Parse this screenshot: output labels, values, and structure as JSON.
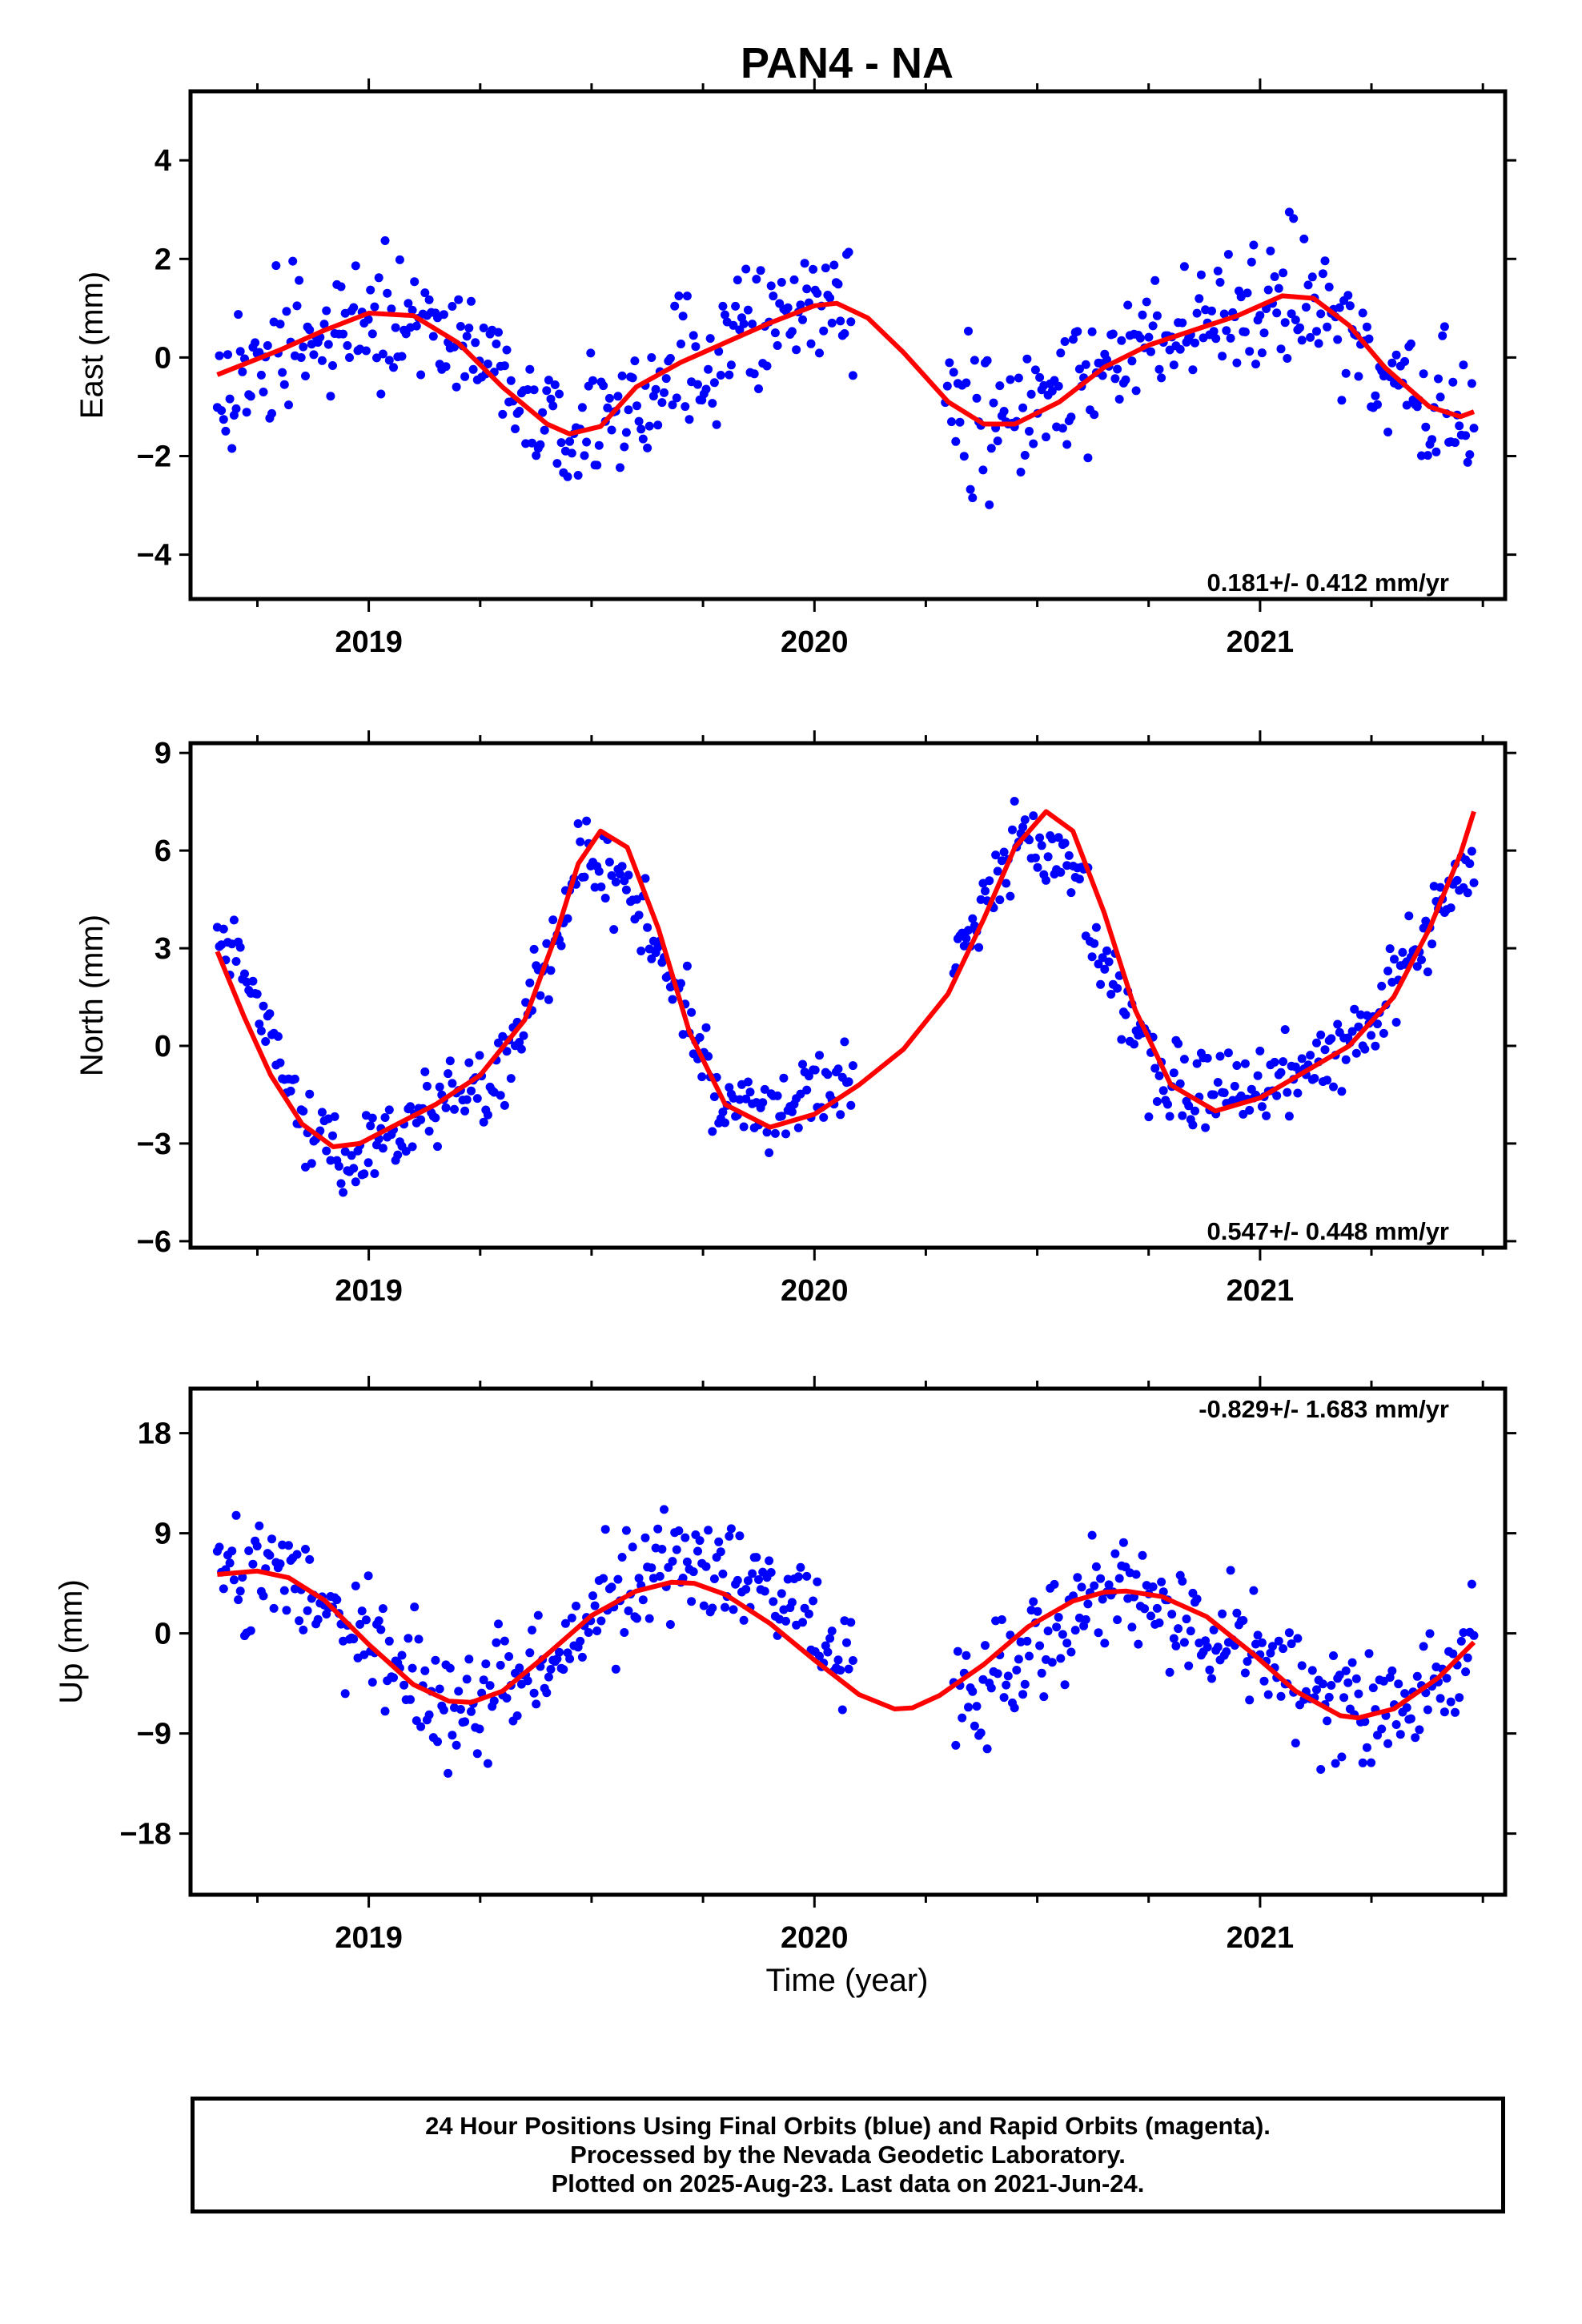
{
  "colors": {
    "final_orbits": "#0000ff",
    "rapid_orbits": "#ff00ff",
    "model": "#ff0000",
    "frame": "#000000"
  },
  "chart_data": [
    {
      "type": "scatter",
      "title": "PAN4 - NA",
      "xlabel": "",
      "ylabel": "East (mm)",
      "xlim": [
        2018.6,
        2021.55
      ],
      "ylim": [
        -4.9,
        5.4
      ],
      "xticks": [
        2019,
        2020,
        2021
      ],
      "yticks": [
        -4,
        -2,
        0,
        2,
        4
      ],
      "ytick_labels": [
        "−4",
        "−2",
        "0",
        "2",
        "4"
      ],
      "rate_label": "0.181+/- 0.412 mm/yr",
      "rate_position": "bottom-right",
      "grid": false,
      "series": [
        {
          "kind": "points",
          "x_range": [
            2018.66,
            2021.48
          ],
          "count": 600,
          "center": [
            [
              2018.66,
              -0.5
            ],
            [
              2018.75,
              -0.3
            ],
            [
              2018.85,
              0.3
            ],
            [
              2019.0,
              0.8
            ],
            [
              2019.15,
              0.8
            ],
            [
              2019.25,
              0.2
            ],
            [
              2019.35,
              -1.2
            ],
            [
              2019.45,
              -1.6
            ],
            [
              2019.6,
              -0.8
            ],
            [
              2019.75,
              0.0
            ],
            [
              2019.9,
              0.8
            ],
            [
              2020.05,
              1.0
            ],
            [
              2020.15,
              0.3
            ],
            [
              2020.35,
              -1.2
            ],
            [
              2020.45,
              -1.3
            ],
            [
              2020.55,
              -0.6
            ],
            [
              2020.7,
              0.3
            ],
            [
              2020.85,
              0.6
            ],
            [
              2021.0,
              1.2
            ],
            [
              2021.12,
              1.2
            ],
            [
              2021.25,
              -0.5
            ],
            [
              2021.35,
              -0.9
            ],
            [
              2021.48,
              -1.2
            ]
          ],
          "gaps": [
            [
              2020.09,
              2020.29
            ]
          ]
        },
        {
          "kind": "line",
          "name": "model",
          "x": [
            2018.66,
            2018.8,
            2018.9,
            2019.0,
            2019.1,
            2019.2,
            2019.3,
            2019.4,
            2019.45,
            2019.52,
            2019.6,
            2019.7,
            2019.8,
            2019.9,
            2020.0,
            2020.05,
            2020.12,
            2020.2,
            2020.3,
            2020.38,
            2020.45,
            2020.55,
            2020.65,
            2020.75,
            2020.85,
            2020.95,
            2021.05,
            2021.12,
            2021.2,
            2021.28,
            2021.38,
            2021.45,
            2021.48
          ],
          "y": [
            -0.35,
            0.15,
            0.55,
            0.9,
            0.85,
            0.3,
            -0.6,
            -1.35,
            -1.55,
            -1.4,
            -0.6,
            -0.1,
            0.3,
            0.7,
            1.05,
            1.1,
            0.8,
            0.1,
            -0.9,
            -1.35,
            -1.35,
            -0.9,
            -0.2,
            0.25,
            0.55,
            0.85,
            1.25,
            1.2,
            0.65,
            -0.2,
            -1.0,
            -1.2,
            -1.1
          ]
        }
      ]
    },
    {
      "type": "scatter",
      "title": "",
      "xlabel": "",
      "ylabel": "North (mm)",
      "xlim": [
        2018.6,
        2021.55
      ],
      "ylim": [
        -6.2,
        9.3
      ],
      "xticks": [
        2019,
        2020,
        2021
      ],
      "yticks": [
        -6,
        -3,
        0,
        3,
        6,
        9
      ],
      "ytick_labels": [
        "−6",
        "−3",
        "0",
        "3",
        "6",
        "9"
      ],
      "rate_label": "0.547+/- 0.448 mm/yr",
      "rate_position": "bottom-right",
      "grid": false,
      "series": [
        {
          "kind": "points",
          "x_range": [
            2018.66,
            2021.48
          ],
          "count": 600,
          "center": [
            [
              2018.66,
              3.5
            ],
            [
              2018.75,
              1.5
            ],
            [
              2018.85,
              -2.0
            ],
            [
              2018.95,
              -3.5
            ],
            [
              2019.1,
              -2.5
            ],
            [
              2019.2,
              -1.5
            ],
            [
              2019.3,
              -0.5
            ],
            [
              2019.4,
              2.5
            ],
            [
              2019.48,
              6.0
            ],
            [
              2019.58,
              5.0
            ],
            [
              2019.68,
              2.0
            ],
            [
              2019.78,
              -1.5
            ],
            [
              2019.9,
              -2.2
            ],
            [
              2020.05,
              -1.0
            ],
            [
              2020.35,
              3.0
            ],
            [
              2020.45,
              6.5
            ],
            [
              2020.55,
              6.0
            ],
            [
              2020.65,
              3.0
            ],
            [
              2020.75,
              -0.8
            ],
            [
              2020.85,
              -1.5
            ],
            [
              2020.95,
              -1.5
            ],
            [
              2021.08,
              -1.0
            ],
            [
              2021.2,
              0.0
            ],
            [
              2021.3,
              2.0
            ],
            [
              2021.4,
              4.0
            ],
            [
              2021.48,
              6.0
            ]
          ],
          "gaps": [
            [
              2020.09,
              2020.31
            ]
          ]
        },
        {
          "kind": "line",
          "name": "model",
          "x": [
            2018.66,
            2018.72,
            2018.78,
            2018.85,
            2018.92,
            2018.98,
            2019.05,
            2019.15,
            2019.25,
            2019.35,
            2019.42,
            2019.47,
            2019.52,
            2019.58,
            2019.65,
            2019.72,
            2019.8,
            2019.9,
            2020.0,
            2020.1,
            2020.2,
            2020.3,
            2020.38,
            2020.45,
            2020.52,
            2020.58,
            2020.65,
            2020.72,
            2020.8,
            2020.9,
            2021.0,
            2021.1,
            2021.2,
            2021.3,
            2021.38,
            2021.45,
            2021.48
          ],
          "y": [
            2.9,
            0.9,
            -0.9,
            -2.4,
            -3.1,
            -3.0,
            -2.5,
            -1.8,
            -0.9,
            0.8,
            3.4,
            5.6,
            6.6,
            6.1,
            3.6,
            0.4,
            -1.8,
            -2.5,
            -2.1,
            -1.2,
            -0.1,
            1.6,
            3.9,
            6.1,
            7.2,
            6.6,
            4.1,
            1.1,
            -1.2,
            -2.0,
            -1.6,
            -0.8,
            0.0,
            1.5,
            3.6,
            5.9,
            7.2
          ]
        }
      ]
    },
    {
      "type": "scatter",
      "title": "",
      "xlabel": "Time (year)",
      "ylabel": "Up (mm)",
      "xlim": [
        2018.6,
        2021.55
      ],
      "ylim": [
        -23.5,
        22.0
      ],
      "xticks": [
        2019,
        2020,
        2021
      ],
      "yticks": [
        -18,
        -9,
        0,
        9,
        18
      ],
      "ytick_labels": [
        "−18",
        "−9",
        "0",
        "9",
        "18"
      ],
      "rate_label": "-0.829+/- 1.683 mm/yr",
      "rate_position": "top-right",
      "grid": false,
      "series": [
        {
          "kind": "points",
          "x_range": [
            2018.66,
            2021.48
          ],
          "count": 600,
          "center": [
            [
              2018.66,
              5.0
            ],
            [
              2018.8,
              5.0
            ],
            [
              2018.95,
              1.0
            ],
            [
              2019.1,
              -3.0
            ],
            [
              2019.2,
              -7.5
            ],
            [
              2019.3,
              -5.0
            ],
            [
              2019.42,
              -2.0
            ],
            [
              2019.55,
              3.0
            ],
            [
              2019.7,
              7.0
            ],
            [
              2019.82,
              5.0
            ],
            [
              2019.95,
              3.0
            ],
            [
              2020.05,
              -2.0
            ],
            [
              2020.33,
              -5.5
            ],
            [
              2020.45,
              -3.0
            ],
            [
              2020.55,
              1.0
            ],
            [
              2020.65,
              4.0
            ],
            [
              2020.75,
              3.0
            ],
            [
              2020.85,
              1.0
            ],
            [
              2020.95,
              -2.0
            ],
            [
              2021.05,
              -4.0
            ],
            [
              2021.15,
              -6.0
            ],
            [
              2021.25,
              -7.0
            ],
            [
              2021.35,
              -6.0
            ],
            [
              2021.48,
              0.0
            ]
          ],
          "gaps": [
            [
              2020.09,
              2020.31
            ]
          ]
        },
        {
          "kind": "line",
          "name": "model",
          "x": [
            2018.66,
            2018.75,
            2018.82,
            2018.9,
            2019.0,
            2019.1,
            2019.18,
            2019.23,
            2019.3,
            2019.4,
            2019.5,
            2019.6,
            2019.68,
            2019.73,
            2019.8,
            2019.9,
            2020.0,
            2020.1,
            2020.18,
            2020.22,
            2020.28,
            2020.38,
            2020.48,
            2020.58,
            2020.65,
            2020.7,
            2020.78,
            2020.88,
            2020.98,
            2021.08,
            2021.18,
            2021.22,
            2021.3,
            2021.4,
            2021.48
          ],
          "y": [
            5.3,
            5.6,
            5.0,
            3.0,
            -1.0,
            -4.6,
            -6.1,
            -6.2,
            -5.2,
            -1.9,
            1.6,
            3.8,
            4.6,
            4.5,
            3.5,
            0.9,
            -2.4,
            -5.5,
            -6.8,
            -6.7,
            -5.6,
            -2.8,
            0.6,
            2.9,
            3.7,
            3.8,
            3.3,
            1.5,
            -1.7,
            -5.2,
            -7.4,
            -7.6,
            -6.8,
            -4.0,
            -0.8
          ]
        }
      ]
    }
  ],
  "caption": {
    "line1": "24 Hour Positions Using Final Orbits (blue) and Rapid Orbits (magenta).",
    "line2": "Processed by the Nevada Geodetic Laboratory.",
    "line3": "Plotted on 2025-Aug-23. Last data on 2021-Jun-24."
  }
}
